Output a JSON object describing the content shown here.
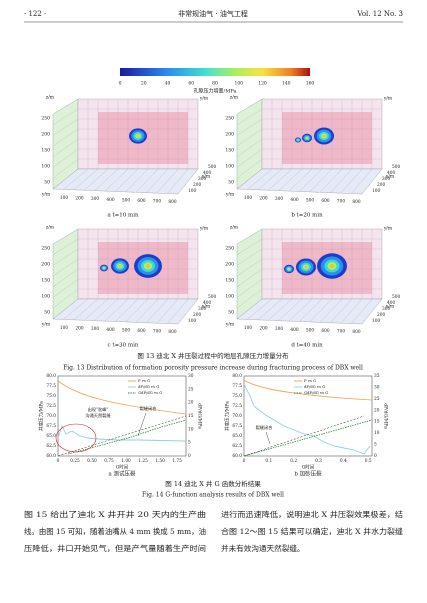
{
  "header": {
    "page": "· 122 ·",
    "journal": "非常规油气 · 油气工程",
    "volume": "Vol. 12  No. 3"
  },
  "figure13": {
    "colorbar": {
      "ticks": [
        0,
        20,
        40,
        60,
        80,
        100,
        120,
        140,
        160
      ],
      "label": "孔隙压力增量/MPa"
    },
    "axes": {
      "z_label": "z/m",
      "y_label": "y/m",
      "x_label": "x/m",
      "z_ticks": [
        250,
        200,
        150,
        100,
        50
      ],
      "x_ticks": [
        100,
        200,
        300,
        400,
        500,
        600,
        700,
        800
      ],
      "y_ticks": [
        100,
        200,
        300,
        400,
        500
      ]
    },
    "panels": [
      {
        "label": "a  t=10 min"
      },
      {
        "label": "b  t=20 min"
      },
      {
        "label": "c  t=30 min"
      },
      {
        "label": "d  t=40 min"
      }
    ],
    "caption_cn": "图 13   迪北 X 井压裂过程中的地层孔隙压力增量分布",
    "caption_en": "Fig. 13   Distribution of formation porosity pressure increase during fracturing process of DBX well"
  },
  "figure14": {
    "legend": [
      "P vs G",
      "dP/dG vs G",
      "GdP/dG vs G"
    ],
    "y_label": "井底压力/MPa",
    "y2_label": "dP/dG/MPa",
    "x_label": "G时间",
    "panels": [
      {
        "label": "a 测试压裂",
        "yticks": [
          "80.0",
          "77.5",
          "75.0",
          "72.5",
          "70.0",
          "67.5",
          "65.0",
          "62.5",
          "60.0"
        ],
        "y2ticks": [
          30,
          25,
          20,
          15,
          10,
          5,
          0
        ],
        "xticks": [
          "0",
          "0.25",
          "0.50",
          "0.75",
          "1.00",
          "1.25",
          "1.50",
          "1.75"
        ],
        "annotations": [
          "出现\"驼峰\"",
          "沟通天然裂缝",
          "裂缝闭合"
        ]
      },
      {
        "label": "b 加砂压裂",
        "yticks": [
          "80.0",
          "77.5",
          "75.0",
          "72.5",
          "70.0",
          "67.5",
          "65.0",
          "62.5",
          "60.0"
        ],
        "y2ticks": [
          35,
          30,
          25,
          20,
          15,
          10,
          5,
          0
        ],
        "xticks": [
          "0",
          "0.1",
          "0.2",
          "0.3",
          "0.4",
          "0.5"
        ],
        "annotations": [
          "裂缝闭合"
        ]
      }
    ],
    "caption_cn": "图 14   迪北 X 井 G 函数分析结果",
    "caption_en": "Fig. 14   G-function analysis results of DBX well"
  },
  "body": {
    "left": [
      "图 15 给出了迪北 X 井开井 20 天内的生产曲",
      "线。由图 15 可知，随着油嘴从 4 mm 换成 5 mm，油",
      "压降低，井口开始见气，但是产气量随着生产时间"
    ],
    "right": [
      "进行而迅速降低，说明迪北 X 井压裂效果极差，结",
      "合图 12～图 15 结果可以确定，迪北 X 井水力裂缝",
      "并未有效沟通天然裂缝。"
    ]
  }
}
